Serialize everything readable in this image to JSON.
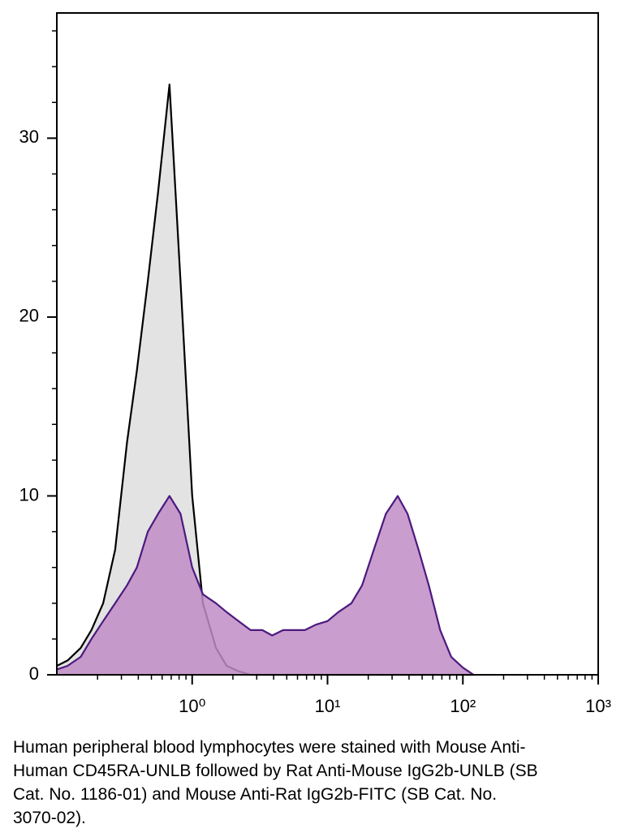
{
  "chart_data": {
    "type": "histogram-area",
    "xscale": "log",
    "x": [
      0.1,
      0.12,
      0.15,
      0.18,
      0.22,
      0.27,
      0.33,
      0.39,
      0.47,
      0.56,
      0.68,
      0.82,
      1,
      1.2,
      1.5,
      1.8,
      2.2,
      2.7,
      3.3,
      3.9,
      4.7,
      5.6,
      6.8,
      8.2,
      10,
      12,
      15,
      18,
      22,
      27,
      33,
      39,
      47,
      56,
      68,
      82,
      100,
      120
    ],
    "series": [
      {
        "color": "#e3e3e3",
        "line_color": "#000000",
        "values": [
          0.5,
          0.8,
          1.5,
          2.5,
          4,
          7,
          13,
          17,
          22,
          27,
          33,
          22,
          10,
          4,
          1.5,
          0.5,
          0.2,
          0,
          0,
          0,
          0,
          0,
          0,
          0,
          0,
          0,
          0,
          0,
          0,
          0,
          0,
          0,
          0,
          0,
          0,
          0,
          0,
          0
        ]
      },
      {
        "color": "#c08cc6",
        "line_color": "#4b1a7e",
        "values": [
          0.3,
          0.5,
          1,
          2,
          3,
          4,
          5,
          6,
          8,
          9,
          10,
          9,
          6,
          4.5,
          4,
          3.5,
          3,
          2.5,
          2.5,
          2.2,
          2.5,
          2.5,
          2.5,
          2.8,
          3,
          3.5,
          4,
          5,
          7,
          9,
          10,
          9,
          7,
          5,
          2.5,
          1,
          0.4,
          0
        ]
      }
    ],
    "xlim": [
      0.1,
      1000
    ],
    "xticks": [
      {
        "value": 1,
        "label": "10⁰"
      },
      {
        "value": 10,
        "label": "10¹"
      },
      {
        "value": 100,
        "label": "10²"
      },
      {
        "value": 1000,
        "label": "10³"
      }
    ],
    "ylim": [
      0,
      37
    ],
    "yticks": [
      0,
      10,
      20,
      30
    ],
    "caption": "Human peripheral blood lymphocytes were stained with Mouse Anti-Human CD45RA-UNLB followed by Rat Anti-Mouse IgG2b-UNLB (SB Cat. No. 1186-01) and Mouse Anti-Rat IgG2b-FITC (SB Cat. No. 3070-02)."
  }
}
